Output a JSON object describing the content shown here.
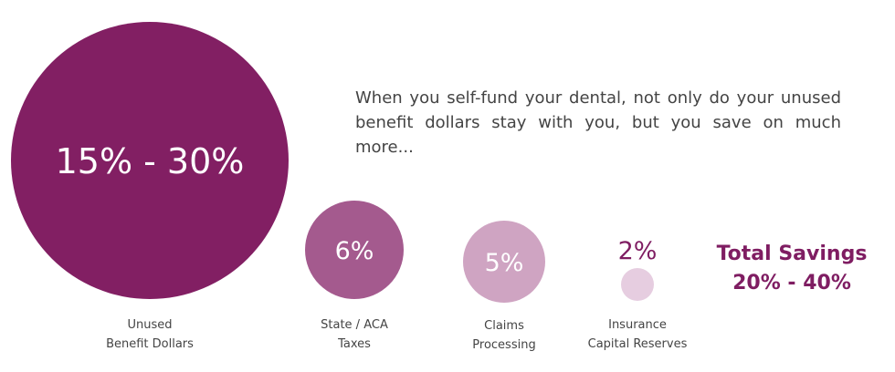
{
  "description": "When you self-fund your dental, not only do your unused benefit dollars stay with you, but you save on much more...",
  "total": {
    "label": "Total Savings",
    "value": "20% - 40%"
  },
  "colors": {
    "text": "#444444",
    "total": "#7f1d62",
    "circle_label_light": "#ffffff"
  },
  "chart_data": {
    "type": "bubble",
    "items": [
      {
        "value_label": "15% - 30%",
        "category": [
          "Unused",
          "Benefit Dollars"
        ],
        "min": 15,
        "max": 30,
        "color": "#821f63"
      },
      {
        "value_label": "6%",
        "category": [
          "State / ACA",
          "Taxes"
        ],
        "value": 6,
        "color": "#a45a8e"
      },
      {
        "value_label": "5%",
        "category": [
          "Claims",
          "Processing"
        ],
        "value": 5,
        "color": "#cfa4c2"
      },
      {
        "value_label": "2%",
        "category": [
          "Insurance",
          "Capital Reserves"
        ],
        "value": 2,
        "color": "#e6cde0"
      }
    ]
  }
}
